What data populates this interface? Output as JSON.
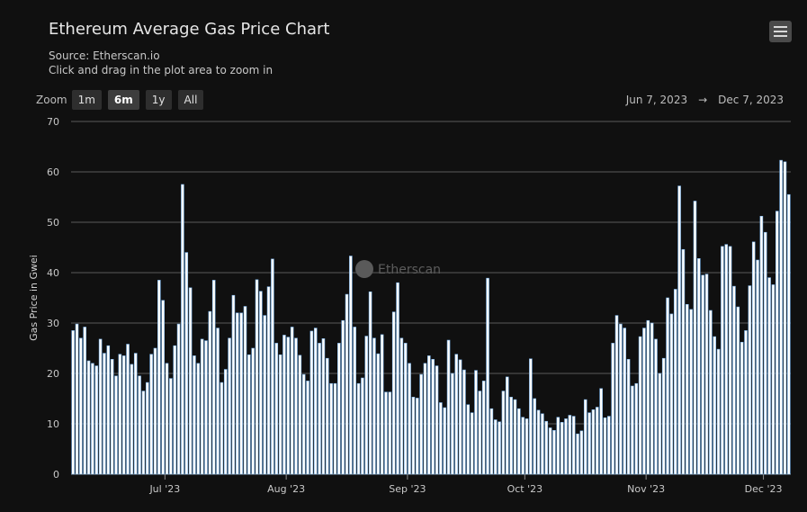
{
  "header": {
    "title": "Ethereum Average Gas Price Chart",
    "source": "Source: Etherscan.io",
    "hint": "Click and drag in the plot area to zoom in"
  },
  "menu": {
    "icon": "hamburger-menu-icon"
  },
  "zoom": {
    "label": "Zoom",
    "buttons": [
      "1m",
      "6m",
      "1y",
      "All"
    ],
    "active": "6m"
  },
  "range": {
    "from": "Jun 7, 2023",
    "arrow": "→",
    "to": "Dec 7, 2023"
  },
  "watermark": {
    "text": "Etherscan",
    "icon": "etherscan-logo-icon"
  },
  "colors": {
    "background": "#101010",
    "bar_fill": "#ffffff",
    "bar_edge": "#7cb5ec",
    "grid": "#5a5a5a"
  },
  "chart_data": {
    "type": "bar",
    "title": "Ethereum Average Gas Price Chart",
    "ylabel": "Gas Price in Gwei",
    "xlabel": "",
    "ylim": [
      0,
      70
    ],
    "yticks": [
      0,
      10,
      20,
      30,
      40,
      50,
      60,
      70
    ],
    "x_range": [
      "2023-06-07",
      "2023-12-07"
    ],
    "xticks": [
      {
        "date": "2023-07-01",
        "label": "Jul '23"
      },
      {
        "date": "2023-08-01",
        "label": "Aug '23"
      },
      {
        "date": "2023-09-01",
        "label": "Sep '23"
      },
      {
        "date": "2023-10-01",
        "label": "Oct '23"
      },
      {
        "date": "2023-11-01",
        "label": "Nov '23"
      },
      {
        "date": "2023-12-01",
        "label": "Dec '23"
      }
    ],
    "grid": true,
    "legend": false,
    "series": [
      {
        "start_date": "2023-06-07",
        "interval": "1 day",
        "values": [
          28.5,
          29.8,
          27,
          29.2,
          22.5,
          22,
          21.5,
          26.8,
          24,
          25.5,
          22.8,
          19.5,
          23.8,
          23.5,
          25.8,
          21.8,
          24,
          19.5,
          16.5,
          18.2,
          23.8,
          25,
          38.5,
          34.5,
          22,
          19,
          25.5,
          29.8,
          57.5,
          44,
          37,
          23.5,
          22,
          26.8,
          26.5,
          32.3,
          38.5,
          29,
          18.2,
          20.8,
          27,
          35.5,
          32,
          32,
          33.3,
          23.7,
          25,
          38.6,
          36.3,
          31.5,
          37.2,
          42.7,
          26,
          23.7,
          27.6,
          27.2,
          29.2,
          27,
          23.6,
          19.8,
          18.5,
          28.4,
          29,
          26,
          26.9,
          23,
          18,
          18,
          26,
          30.5,
          35.7,
          43.3,
          29.2,
          18,
          19.1,
          27.4,
          36.2,
          27,
          23.9,
          27.7,
          16.3,
          16.3,
          32.2,
          38,
          27,
          26,
          22,
          15.3,
          15.1,
          19.8,
          22,
          23.5,
          22.8,
          21.5,
          14.2,
          13.2,
          26.6,
          20,
          23.8,
          22.7,
          20.7,
          13.8,
          12.2,
          20.6,
          16.5,
          18.5,
          38.9,
          13,
          10.8,
          10.4,
          16.5,
          19.3,
          15.3,
          14.8,
          13,
          11.3,
          11,
          22.9,
          15,
          12.7,
          12,
          10.5,
          9.2,
          8.7,
          11.3,
          10.3,
          11,
          11.7,
          11.5,
          8,
          8.6,
          14.8,
          12.2,
          12.8,
          13.3,
          17,
          11.2,
          11.5,
          26,
          31.5,
          29.8,
          29,
          22.8,
          17.5,
          18,
          27.3,
          29,
          30.5,
          30,
          26.8,
          20,
          23,
          35,
          31.8,
          36.7,
          57.2,
          44.6,
          33.7,
          32.7,
          54.2,
          42.8,
          39.5,
          39.7,
          32.5,
          27.3,
          24.8,
          45.2,
          45.6,
          45.2,
          37.3,
          33.2,
          26.2,
          28.5,
          37.4,
          46.1,
          42.5,
          51.2,
          48,
          39,
          37.6,
          52.2,
          62.3,
          62,
          55.5
        ]
      }
    ]
  }
}
